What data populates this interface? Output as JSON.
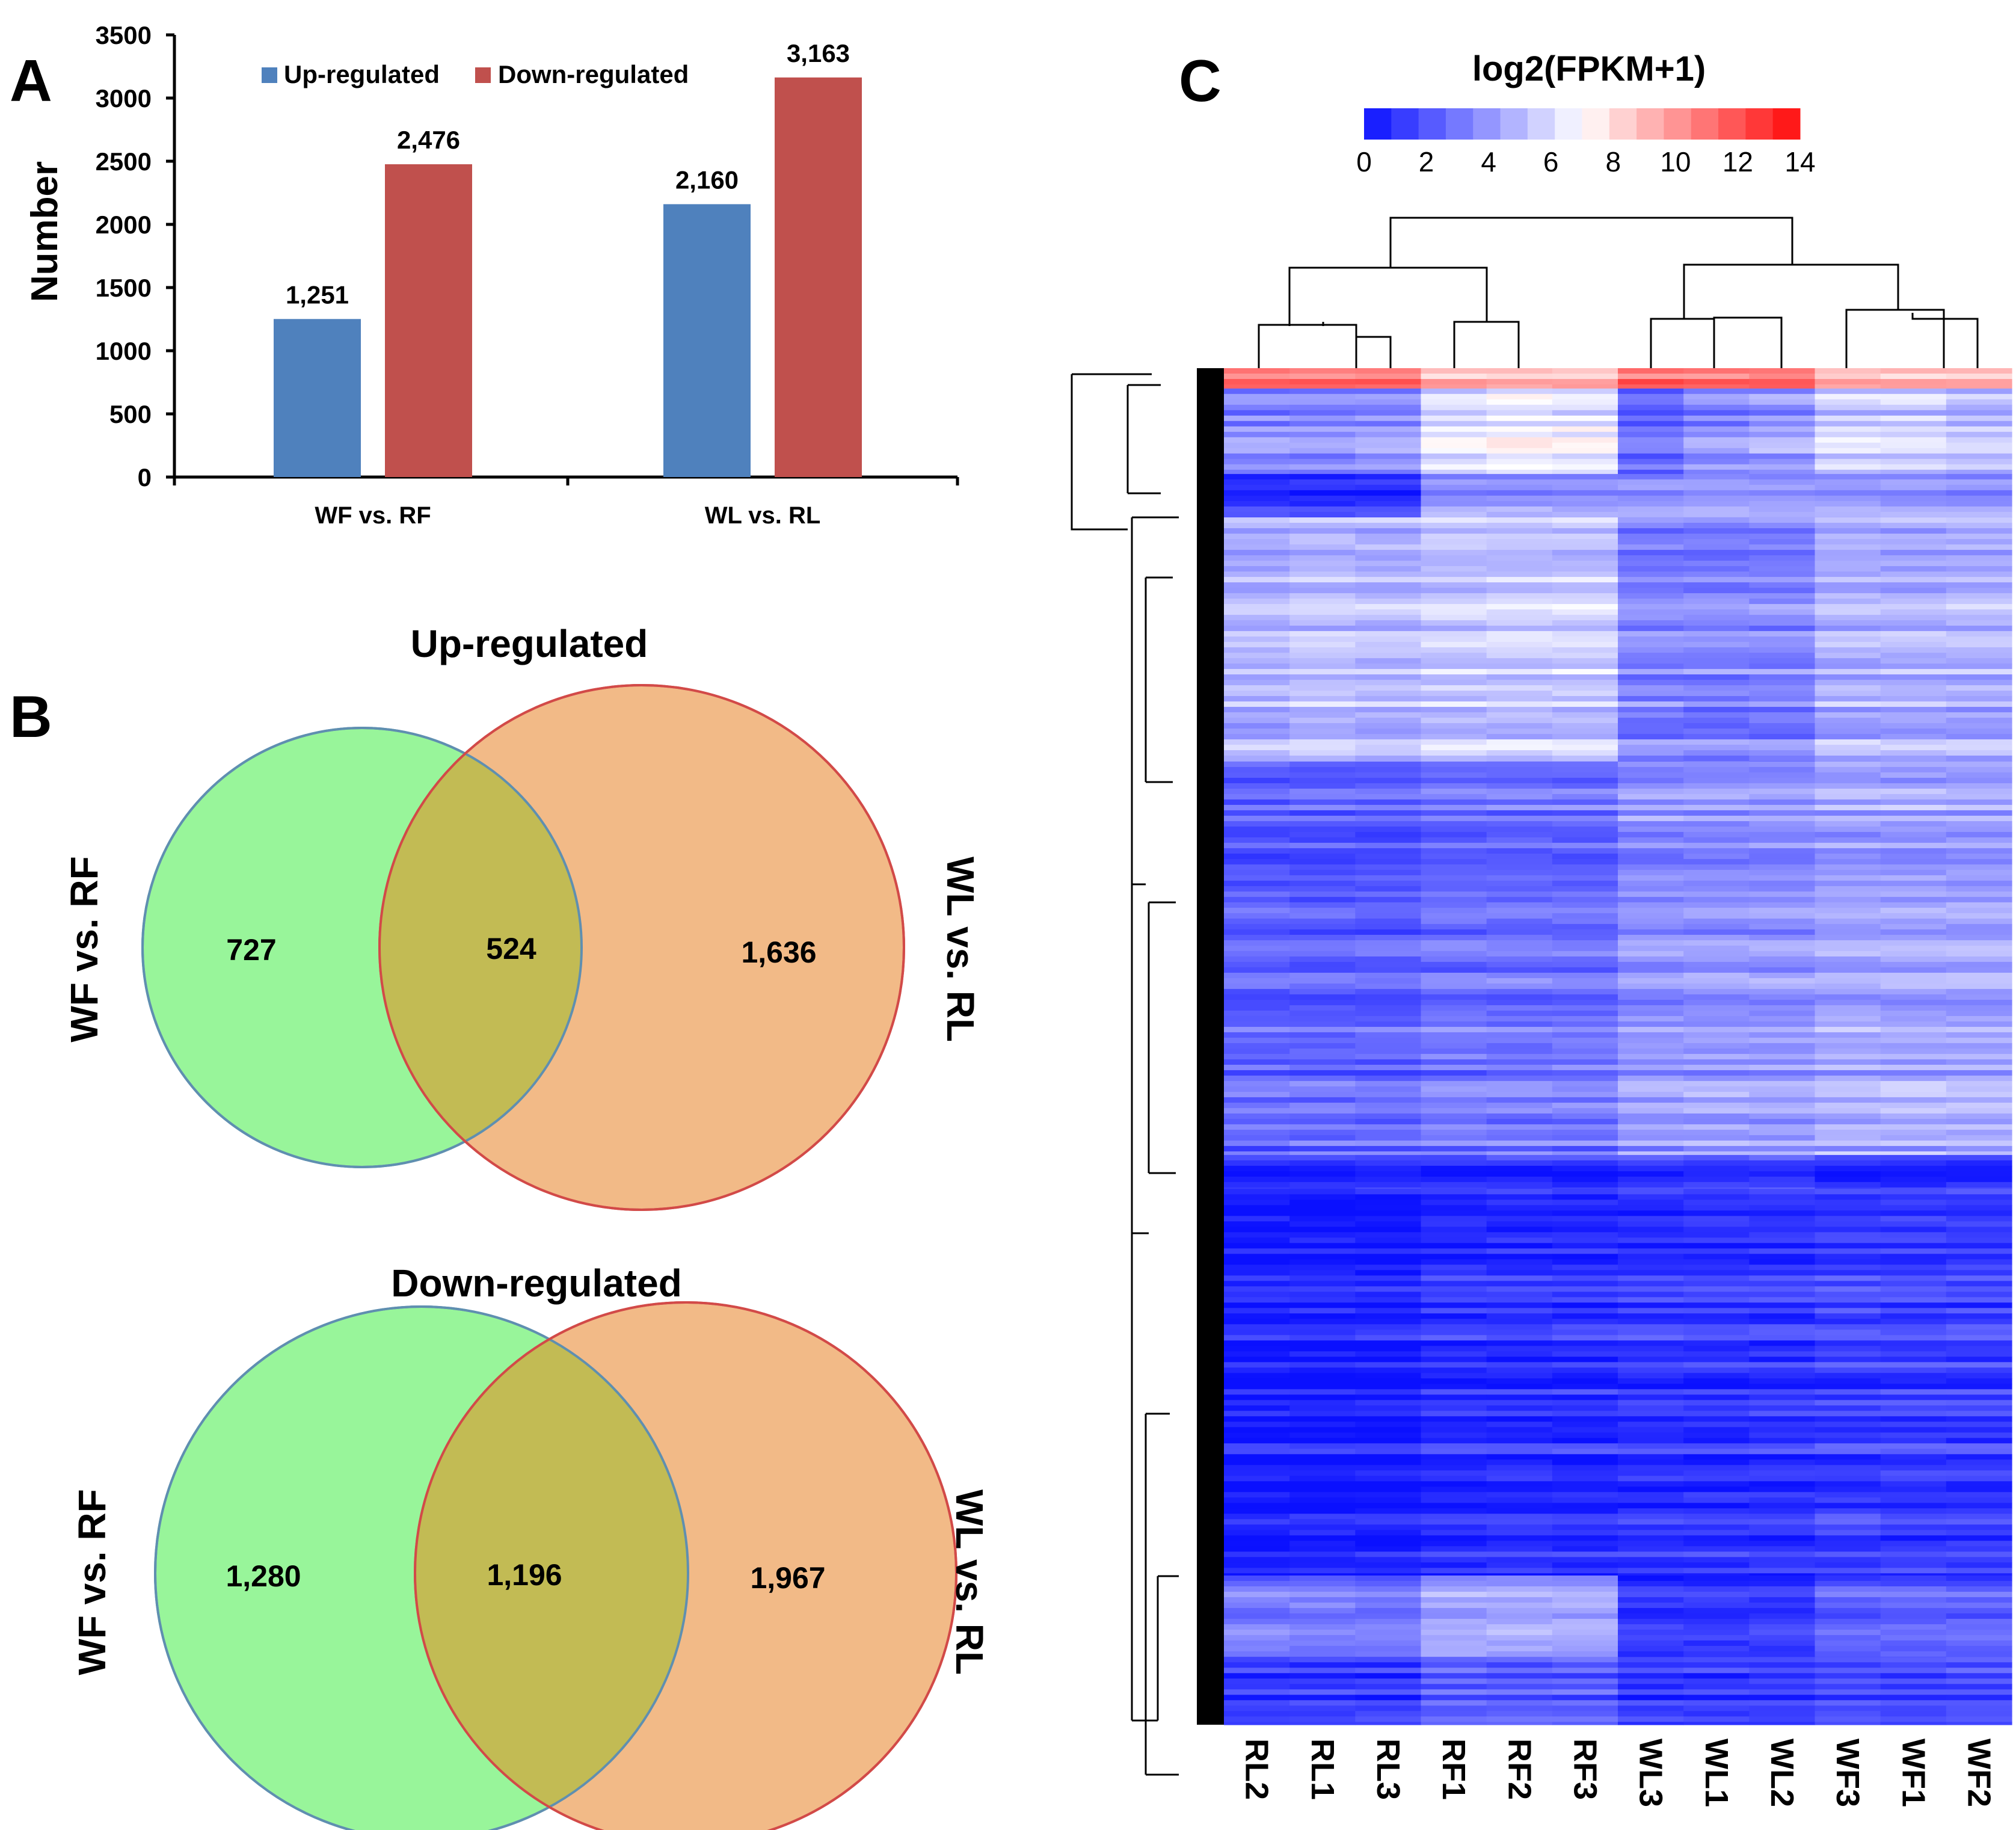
{
  "panels": {
    "a_letter": "A",
    "b_letter": "B",
    "c_letter": "C"
  },
  "colors": {
    "up": "#4F81BD",
    "down": "#C0504D",
    "venn_left": "#98F59A",
    "venn_right": "#F2BA87",
    "venn_overlap": "#C2BB54",
    "heat_low": "#0A10FF",
    "heat_mid": "#FFFFFF",
    "heat_high": "#FF0A0A"
  },
  "chart_data": [
    {
      "type": "bar",
      "title": "",
      "ylabel": "Number",
      "xlabel": "",
      "ylim": [
        0,
        3500
      ],
      "yticks": [
        0,
        500,
        1000,
        1500,
        2000,
        2500,
        3000,
        3500
      ],
      "categories": [
        "WF vs. RF",
        "WL vs. RL"
      ],
      "series": [
        {
          "name": "Up-regulated",
          "values": [
            1251,
            2160
          ],
          "labels": [
            "1,251",
            "2,160"
          ]
        },
        {
          "name": "Down-regulated",
          "values": [
            2476,
            3163
          ],
          "labels": [
            "2,476",
            "3,163"
          ]
        }
      ],
      "legend": "top"
    },
    {
      "type": "venn",
      "title": "Up-regulated",
      "sets": [
        "WF vs. RF",
        "WL vs. RL"
      ],
      "regions": {
        "left_only": 727,
        "both": 524,
        "right_only": 1636
      },
      "labels": {
        "left_only": "727",
        "both": "524",
        "right_only": "1,636"
      }
    },
    {
      "type": "venn",
      "title": "Down-regulated",
      "sets": [
        "WF vs. RF",
        "WL vs. RL"
      ],
      "regions": {
        "left_only": 1280,
        "both": 1196,
        "right_only": 1967
      },
      "labels": {
        "left_only": "1,280",
        "both": "1,196",
        "right_only": "1,967"
      }
    },
    {
      "type": "heatmap",
      "title": "log2(FPKM+1)",
      "scale": {
        "min": 0,
        "max": 14,
        "ticks": [
          "0",
          "2",
          "4",
          "6",
          "8",
          "10",
          "12",
          "14"
        ]
      },
      "columns": [
        "RL2",
        "RL1",
        "RL3",
        "RF1",
        "RF2",
        "RF3",
        "WL3",
        "WL1",
        "WL2",
        "WF3",
        "WF1",
        "WF2"
      ],
      "row_blocks": [
        {
          "from": 0.0,
          "to": 0.015,
          "levels": [
            11,
            11,
            11,
            9,
            9,
            9,
            11,
            11,
            11,
            9,
            9,
            9
          ]
        },
        {
          "from": 0.015,
          "to": 0.078,
          "levels": [
            3.5,
            3.5,
            3.8,
            6,
            6.5,
            6.2,
            2.5,
            3.5,
            4,
            5.5,
            5.5,
            5
          ]
        },
        {
          "from": 0.078,
          "to": 0.11,
          "levels": [
            1,
            1,
            1,
            4,
            4,
            4,
            4,
            4,
            4,
            4,
            4,
            4
          ]
        },
        {
          "from": 0.11,
          "to": 0.29,
          "levels": [
            4.8,
            5.2,
            5,
            5.5,
            5.5,
            5.5,
            3.5,
            3.5,
            3.5,
            4.8,
            4.8,
            4.8
          ]
        },
        {
          "from": 0.29,
          "to": 0.58,
          "levels": [
            2.5,
            2.5,
            2.5,
            3,
            3,
            3,
            4,
            4,
            4,
            4.5,
            4.5,
            4.5
          ]
        },
        {
          "from": 0.58,
          "to": 0.605,
          "levels": [
            1,
            1,
            1,
            1,
            1,
            1,
            1.5,
            1.5,
            1.5,
            1,
            1,
            1
          ]
        },
        {
          "from": 0.605,
          "to": 0.89,
          "levels": [
            0.5,
            0.5,
            0.5,
            1,
            1,
            1,
            1.2,
            1.2,
            1.2,
            1.5,
            1.5,
            1.5
          ]
        },
        {
          "from": 0.89,
          "to": 0.95,
          "levels": [
            3,
            3,
            3,
            4.2,
            4.2,
            4.2,
            1,
            1,
            1,
            2.2,
            2.2,
            2.2
          ]
        },
        {
          "from": 0.95,
          "to": 1.0,
          "levels": [
            1,
            1,
            1,
            2,
            2,
            2,
            1,
            1,
            1,
            1.5,
            1.5,
            1.5
          ]
        }
      ]
    }
  ]
}
